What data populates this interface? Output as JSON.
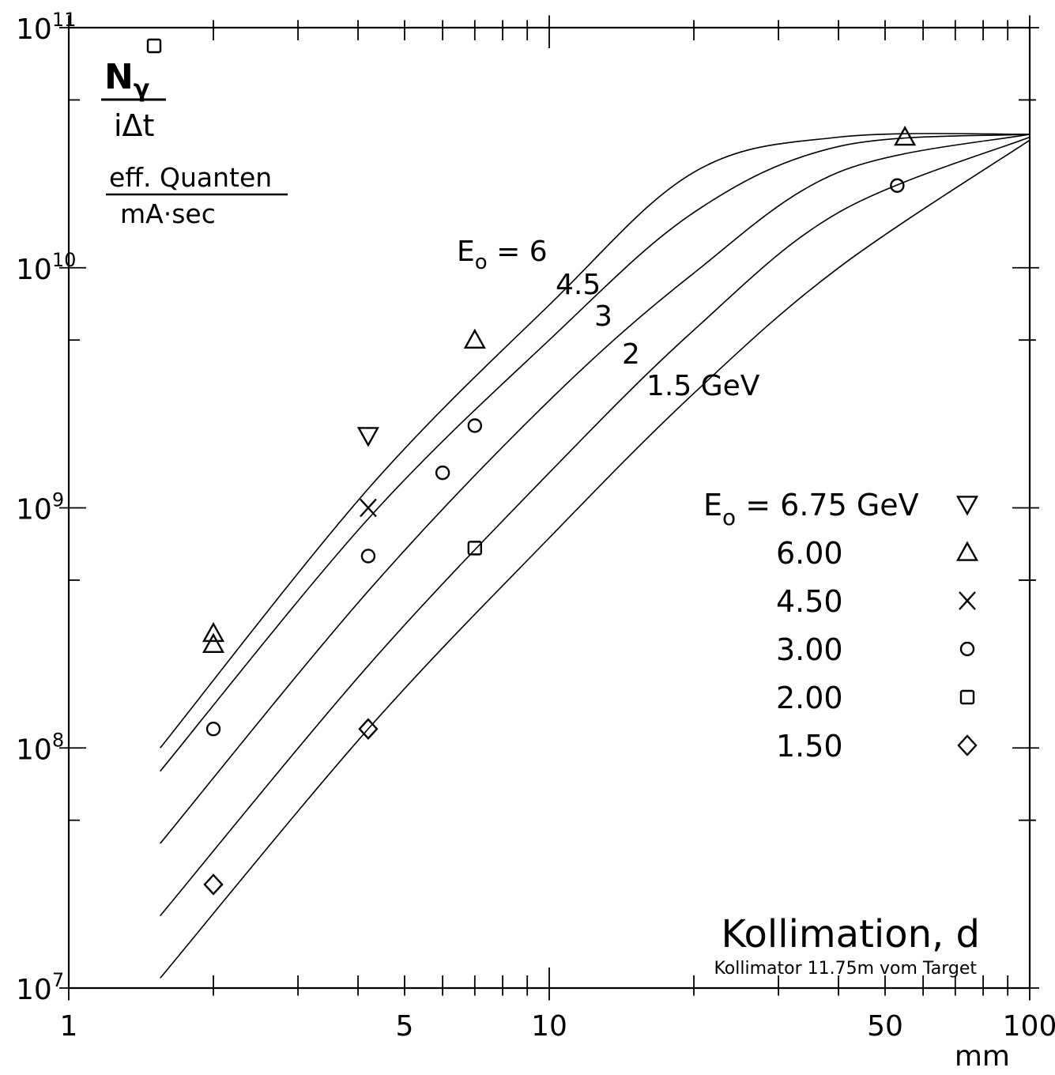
{
  "chart_data": {
    "type": "scatter",
    "xlabel": "Kollimation, d",
    "x_note": "Kollimator 11.75m vom Target",
    "x_unit": "mm",
    "ylabel_num": "Nγ",
    "ylabel_den": "iΔt",
    "yunit_num": "eff. Quanten",
    "yunit_den": "mA·sec",
    "x_scale": "log",
    "y_scale": "log",
    "xlim": [
      1,
      100
    ],
    "ylim": [
      10000000.0,
      100000000000.0
    ],
    "x_ticks": [
      {
        "value": 1,
        "label": "1"
      },
      {
        "value": 5,
        "label": "5"
      },
      {
        "value": 10,
        "label": "10"
      },
      {
        "value": 50,
        "label": "50"
      },
      {
        "value": 100,
        "label": "100"
      }
    ],
    "y_ticks": [
      {
        "value": 10000000.0,
        "base": "10",
        "exp": "7"
      },
      {
        "value": 100000000.0,
        "base": "10",
        "exp": "8"
      },
      {
        "value": 1000000000.0,
        "base": "10",
        "exp": "9"
      },
      {
        "value": 10000000000.0,
        "base": "10",
        "exp": "10"
      },
      {
        "value": 100000000000.0,
        "base": "10",
        "exp": "11"
      }
    ],
    "curves": [
      {
        "label": "Eo = 6",
        "points": [
          [
            1.55,
            100000000.0
          ],
          [
            4.2,
            1200000000.0
          ],
          [
            10,
            7000000000.0
          ],
          [
            20,
            25000000000.0
          ],
          [
            40,
            35000000000.0
          ],
          [
            100,
            36000000000.0
          ]
        ]
      },
      {
        "label": "4.5",
        "points": [
          [
            1.55,
            80000000.0
          ],
          [
            4.2,
            900000000.0
          ],
          [
            10,
            5000000000.0
          ],
          [
            20,
            17000000000.0
          ],
          [
            40,
            32000000000.0
          ],
          [
            100,
            36000000000.0
          ]
        ]
      },
      {
        "label": "3",
        "points": [
          [
            1.55,
            40000000.0
          ],
          [
            4.2,
            450000000.0
          ],
          [
            10,
            2800000000.0
          ],
          [
            20,
            9500000000.0
          ],
          [
            40,
            25000000000.0
          ],
          [
            100,
            36000000000.0
          ]
        ]
      },
      {
        "label": "2",
        "points": [
          [
            1.55,
            20000000.0
          ],
          [
            4.2,
            220000000.0
          ],
          [
            10,
            1400000000.0
          ],
          [
            20,
            5500000000.0
          ],
          [
            40,
            17000000000.0
          ],
          [
            100,
            35000000000.0
          ]
        ]
      },
      {
        "label": "1.5 GeV",
        "points": [
          [
            1.55,
            11000000.0
          ],
          [
            4.2,
            120000000.0
          ],
          [
            10,
            750000000.0
          ],
          [
            20,
            3000000000.0
          ],
          [
            40,
            10000000000.0
          ],
          [
            100,
            34000000000.0
          ]
        ]
      }
    ],
    "series": [
      {
        "energy": "6.75 GeV",
        "marker": "triangle-down",
        "points": [
          [
            4.2,
            2000000000.0
          ]
        ]
      },
      {
        "energy": "6.00",
        "marker": "triangle-up",
        "points": [
          [
            2,
            300000000.0
          ],
          [
            7,
            5000000000.0
          ],
          [
            55,
            35000000000.0
          ]
        ]
      },
      {
        "energy": "4.50",
        "marker": "x",
        "points": [
          [
            4.2,
            1000000000.0
          ]
        ]
      },
      {
        "energy": "3.00",
        "marker": "circle",
        "points": [
          [
            2,
            120000000.0
          ],
          [
            4.2,
            630000000.0
          ],
          [
            6,
            1400000000.0
          ],
          [
            7,
            2200000000.0
          ],
          [
            53,
            22000000000.0
          ]
        ]
      },
      {
        "energy": "2.00",
        "marker": "square",
        "points": [
          [
            7,
            680000000.0
          ]
        ]
      },
      {
        "energy": "1.50",
        "marker": "diamond",
        "points": [
          [
            2,
            27000000.0
          ],
          [
            4.2,
            120000000.0
          ]
        ]
      }
    ],
    "extra_point": {
      "energy": "6.00",
      "marker": "triangle-up",
      "points": [
        [
          2,
          270000000.0
        ]
      ]
    },
    "legend": {
      "placement": "right",
      "prefix": "E",
      "prefix_sub": "o",
      "equals": "="
    },
    "stray_marker": "square"
  }
}
